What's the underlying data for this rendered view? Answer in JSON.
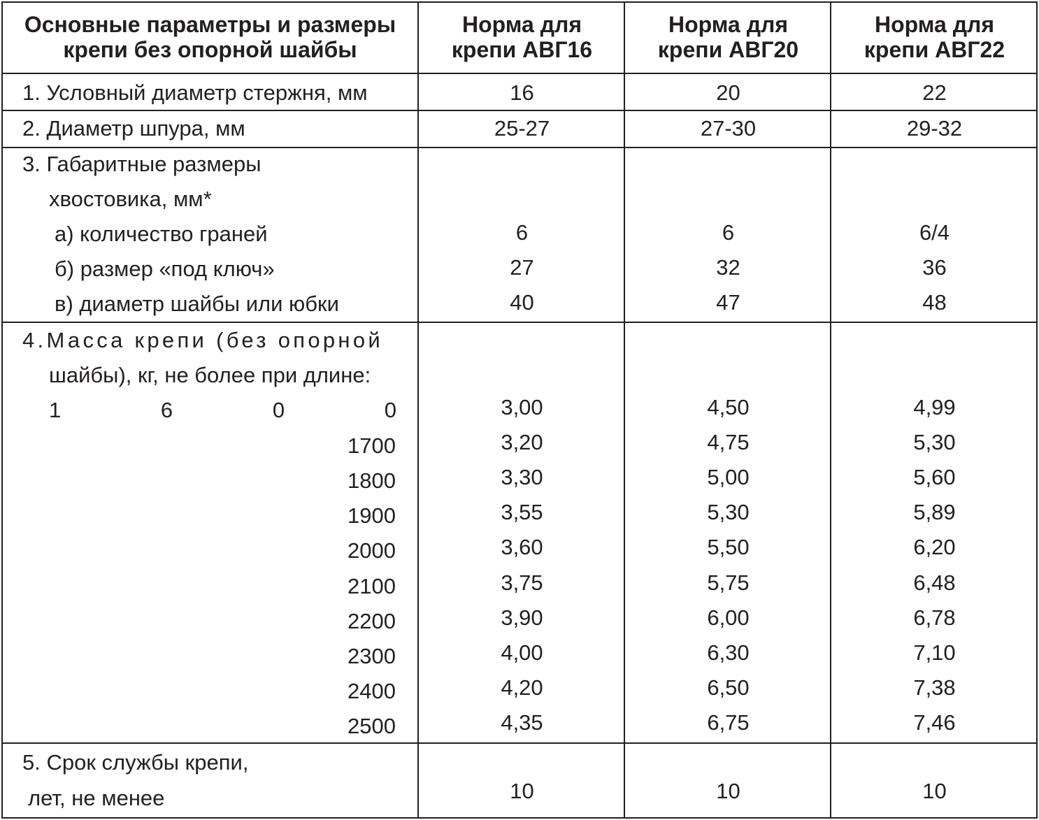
{
  "header": {
    "param_col": [
      "Основные параметры и размеры",
      "крепи без опорной шайбы"
    ],
    "norm_cols": [
      [
        "Норма для",
        "крепи АВГ16"
      ],
      [
        "Норма для",
        "крепи АВГ20"
      ],
      [
        "Норма для",
        "крепи АВГ22"
      ]
    ]
  },
  "rows": {
    "rod_diameter": {
      "label": "1. Условный диаметр стержня, мм",
      "values": [
        "16",
        "20",
        "22"
      ]
    },
    "hole_diameter": {
      "label": "2. Диаметр шпура, мм",
      "values": [
        "25-27",
        "27-30",
        "29-32"
      ]
    },
    "shank": {
      "label_lines": [
        "3. Габаритные размеры",
        "хвостовика, мм*"
      ],
      "items": [
        {
          "label": "а) количество граней",
          "values": [
            "6",
            "6",
            "6/4"
          ]
        },
        {
          "label": "б) размер «под ключ»",
          "values": [
            "27",
            "32",
            "36"
          ]
        },
        {
          "label": "в) диаметр шайбы или юбки",
          "values": [
            "40",
            "47",
            "48"
          ]
        }
      ]
    },
    "mass": {
      "label_lines": [
        "4.Масса крепи (без опорной",
        "шайбы), кг, не более при длине:"
      ],
      "first_length_digits": [
        "1",
        "6",
        "0",
        "0"
      ],
      "lengths": [
        "1600",
        "1700",
        "1800",
        "1900",
        "2000",
        "2100",
        "2200",
        "2300",
        "2400",
        "2500"
      ],
      "values": [
        [
          "3,00",
          "4,50",
          "4,99"
        ],
        [
          "3,20",
          "4,75",
          "5,30"
        ],
        [
          "3,30",
          "5,00",
          "5,60"
        ],
        [
          "3,55",
          "5,30",
          "5,89"
        ],
        [
          "3,60",
          "5,50",
          "6,20"
        ],
        [
          "3,75",
          "5,75",
          "6,48"
        ],
        [
          "3,90",
          "6,00",
          "6,78"
        ],
        [
          "4,00",
          "6,30",
          "7,10"
        ],
        [
          "4,20",
          "6,50",
          "7,38"
        ],
        [
          "4,35",
          "6,75",
          "7,46"
        ]
      ]
    },
    "service_life": {
      "label_lines": [
        "5. Срок службы крепи,",
        "лет, не менее"
      ],
      "values": [
        "10",
        "10",
        "10"
      ]
    }
  }
}
